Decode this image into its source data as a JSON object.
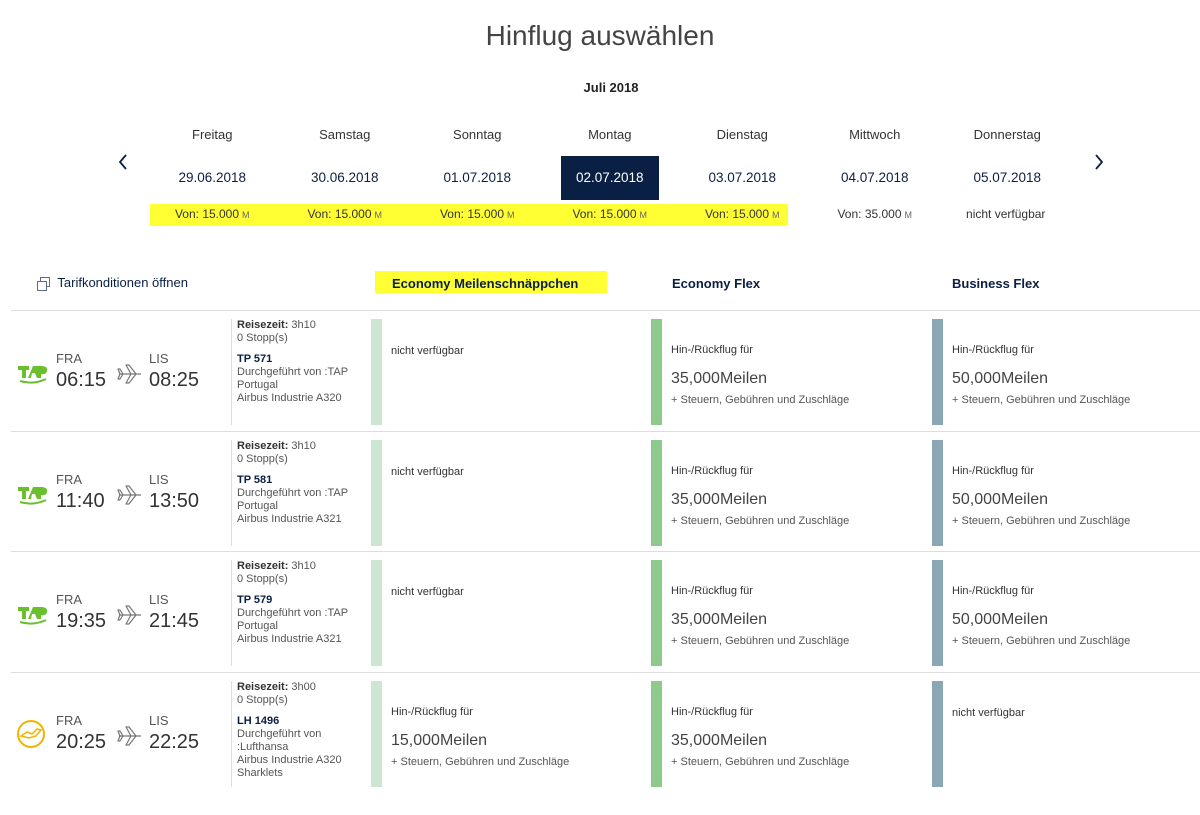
{
  "title": "Hinflug auswählen",
  "month": "Juli 2018",
  "nav": {
    "prev_icon": "chevron-left-icon",
    "next_icon": "chevron-right-icon"
  },
  "days": [
    {
      "name": "Freitag",
      "date": "29.06.2018",
      "price": "Von: 15.000",
      "unit": "M",
      "selected": false
    },
    {
      "name": "Samstag",
      "date": "30.06.2018",
      "price": "Von: 15.000",
      "unit": "M",
      "selected": false
    },
    {
      "name": "Sonntag",
      "date": "01.07.2018",
      "price": "Von: 15.000",
      "unit": "M",
      "selected": false
    },
    {
      "name": "Montag",
      "date": "02.07.2018",
      "price": "Von: 15.000",
      "unit": "M",
      "selected": true
    },
    {
      "name": "Dienstag",
      "date": "03.07.2018",
      "price": "Von: 15.000",
      "unit": "M",
      "selected": false
    },
    {
      "name": "Mittwoch",
      "date": "04.07.2018",
      "price": "Von: 35.000",
      "unit": "M",
      "selected": false
    },
    {
      "name": "Donnerstag",
      "date": "05.07.2018",
      "price": "nicht verfügbar",
      "unit": "",
      "selected": false
    }
  ],
  "tarif_link": "Tarifkonditionen öffnen",
  "fare_headers": {
    "economy_saver": "Economy Meilenschnäppchen",
    "economy_flex": "Economy Flex",
    "business_flex": "Business Flex"
  },
  "colors": {
    "navy": "#0a1f44",
    "highlight": "#ffff33",
    "tap_green": "#6abf2f",
    "lh_yellow": "#f0b400",
    "bar_light": "#cde6d2",
    "bar_green": "#8ec98e",
    "bar_blue": "#8aa8b4"
  },
  "flights": [
    {
      "airline_icon": "tap-logo-icon",
      "from": "FRA",
      "dep": "06:15",
      "to": "LIS",
      "arr": "08:25",
      "reise_label": "Reisezeit:",
      "duration": "3h10",
      "stops": "0 Stopp(s)",
      "flight_no": "TP 571",
      "operated": "Durchgeführt von :TAP Portugal",
      "aircraft": "Airbus Industrie A320",
      "eco": {
        "available": false,
        "na": "nicht verfügbar"
      },
      "flex": {
        "available": true,
        "label": "Hin-/Rückflug für",
        "miles": "35,000Meilen",
        "sub": "+ Steuern, Gebühren und Zuschläge"
      },
      "bus": {
        "available": true,
        "label": "Hin-/Rückflug für",
        "miles": "50,000Meilen",
        "sub": "+ Steuern, Gebühren und Zuschläge"
      }
    },
    {
      "airline_icon": "tap-logo-icon",
      "from": "FRA",
      "dep": "11:40",
      "to": "LIS",
      "arr": "13:50",
      "reise_label": "Reisezeit:",
      "duration": "3h10",
      "stops": "0 Stopp(s)",
      "flight_no": "TP 581",
      "operated": "Durchgeführt von :TAP Portugal",
      "aircraft": "Airbus Industrie A321",
      "eco": {
        "available": false,
        "na": "nicht verfügbar"
      },
      "flex": {
        "available": true,
        "label": "Hin-/Rückflug für",
        "miles": "35,000Meilen",
        "sub": "+ Steuern, Gebühren und Zuschläge"
      },
      "bus": {
        "available": true,
        "label": "Hin-/Rückflug für",
        "miles": "50,000Meilen",
        "sub": "+ Steuern, Gebühren und Zuschläge"
      }
    },
    {
      "airline_icon": "tap-logo-icon",
      "from": "FRA",
      "dep": "19:35",
      "to": "LIS",
      "arr": "21:45",
      "reise_label": "Reisezeit:",
      "duration": "3h10",
      "stops": "0 Stopp(s)",
      "flight_no": "TP 579",
      "operated": "Durchgeführt von :TAP Portugal",
      "aircraft": "Airbus Industrie A321",
      "eco": {
        "available": false,
        "na": "nicht verfügbar"
      },
      "flex": {
        "available": true,
        "label": "Hin-/Rückflug für",
        "miles": "35,000Meilen",
        "sub": "+ Steuern, Gebühren und Zuschläge"
      },
      "bus": {
        "available": true,
        "label": "Hin-/Rückflug für",
        "miles": "50,000Meilen",
        "sub": "+ Steuern, Gebühren und Zuschläge"
      }
    },
    {
      "airline_icon": "lufthansa-crane-icon",
      "from": "FRA",
      "dep": "20:25",
      "to": "LIS",
      "arr": "22:25",
      "reise_label": "Reisezeit:",
      "duration": "3h00",
      "stops": "0 Stopp(s)",
      "flight_no": "LH 1496",
      "operated": "Durchgeführt von :Lufthansa",
      "aircraft": "Airbus Industrie A320 Sharklets",
      "eco": {
        "available": true,
        "label": "Hin-/Rückflug für",
        "miles": "15,000Meilen",
        "sub": "+ Steuern, Gebühren und Zuschläge"
      },
      "flex": {
        "available": true,
        "label": "Hin-/Rückflug für",
        "miles": "35,000Meilen",
        "sub": "+ Steuern, Gebühren und Zuschläge"
      },
      "bus": {
        "available": false,
        "na": "nicht verfügbar"
      }
    }
  ]
}
